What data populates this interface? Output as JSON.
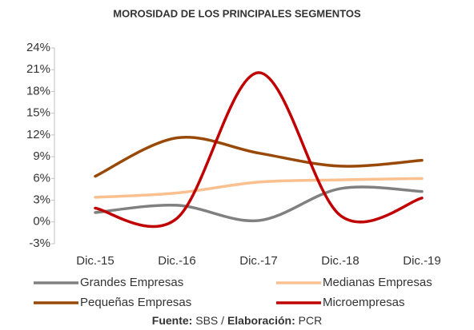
{
  "chart_data": {
    "type": "line",
    "title": "MOROSIDAD DE LOS PRINCIPALES SEGMENTOS",
    "categories": [
      "Dic.-15",
      "Dic.-16",
      "Dic.-17",
      "Dic.-18",
      "Dic.-19"
    ],
    "series": [
      {
        "name": "Grandes Empresas",
        "color": "#808080",
        "values": [
          1.3,
          2.3,
          0.2,
          4.6,
          4.2
        ]
      },
      {
        "name": "Medianas Empresas",
        "color": "#fac090",
        "values": [
          3.4,
          4.0,
          5.5,
          5.8,
          6.0
        ]
      },
      {
        "name": "Pequeñas Empresas",
        "color": "#984807",
        "values": [
          6.3,
          11.6,
          9.5,
          7.7,
          8.5
        ]
      },
      {
        "name": "Microempresas",
        "color": "#c00000",
        "values": [
          1.9,
          0.5,
          20.6,
          0.9,
          3.3
        ]
      }
    ],
    "ylim": [
      -3,
      24
    ],
    "yticks": [
      {
        "value": -3,
        "label": "-3%"
      },
      {
        "value": 0,
        "label": "0%"
      },
      {
        "value": 3,
        "label": "3%"
      },
      {
        "value": 6,
        "label": "6%"
      },
      {
        "value": 9,
        "label": "9%"
      },
      {
        "value": 12,
        "label": "12%"
      },
      {
        "value": 15,
        "label": "15%"
      },
      {
        "value": 18,
        "label": "18%"
      },
      {
        "value": 21,
        "label": "21%"
      },
      {
        "value": 24,
        "label": "24%"
      }
    ],
    "smooth": true,
    "grid": false,
    "legend": "bottom",
    "source_label": "Fuente:",
    "source": "SBS",
    "separator": "/",
    "credit_label": "Elaboración:",
    "credit": "PCR"
  }
}
